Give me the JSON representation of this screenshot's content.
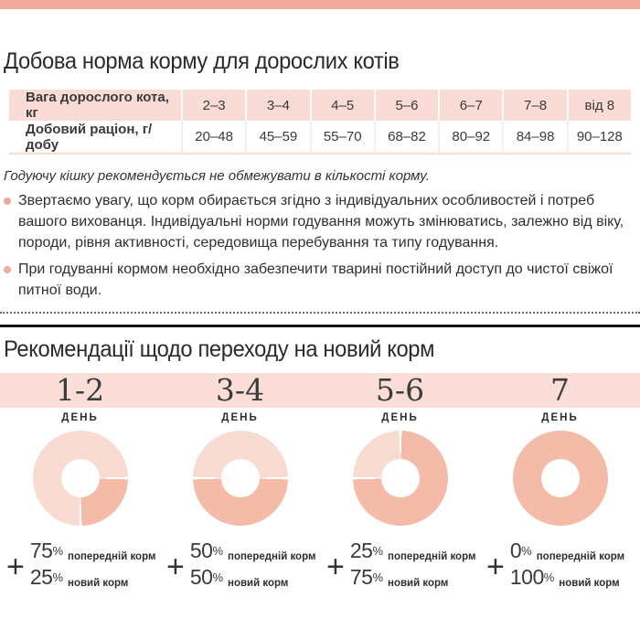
{
  "top_bar": {
    "color": "#f2a99a"
  },
  "section1": {
    "title": "Добова норма корму для дорослих котів",
    "table": {
      "header": [
        "Вага дорослого кота, кг",
        "2–3",
        "3–4",
        "4–5",
        "5–6",
        "6–7",
        "7–8",
        "від 8"
      ],
      "row": [
        "Добовий раціон, г/добу",
        "20–48",
        "45–59",
        "55–70",
        "68–82",
        "80–92",
        "84–98",
        "90–128"
      ]
    },
    "note": "Годуючу кішку рекомендується не обмежувати в кількості корму.",
    "bullets": [
      "Звертаємо увагу, що корм обирається згідно з індивідуальних особливостей і потреб вашого вихованця. Індивідуальні норми годування можуть змінюватись, залежно від віку, породи, рівня активності, середовища перебування та типу годування.",
      "При годуванні кормом необхідно забезпечити тварині постійний доступ до чистої свіжої питної води."
    ]
  },
  "section2": {
    "title": "Рекомендації щодо переходу на новий корм",
    "plus_sign": "+",
    "percent_sign": "%",
    "columns": [
      {
        "days": "1-2",
        "day_word": "ДЕНЬ",
        "prev_pct": "75",
        "prev_label": "попередній корм",
        "new_pct": "25",
        "new_label": "новий корм"
      },
      {
        "days": "3-4",
        "day_word": "ДЕНЬ",
        "prev_pct": "50",
        "prev_label": "попередній корм",
        "new_pct": "50",
        "new_label": "новий корм"
      },
      {
        "days": "5-6",
        "day_word": "ДЕНЬ",
        "prev_pct": "25",
        "prev_label": "попередній корм",
        "new_pct": "75",
        "new_label": "новий корм"
      },
      {
        "days": "7",
        "day_word": "ДЕНЬ",
        "prev_pct": "0",
        "prev_label": "попередній корм",
        "new_pct": "100",
        "new_label": "новий корм"
      }
    ]
  },
  "chart_data": [
    {
      "type": "pie",
      "title": "День 1-2",
      "labels": [
        "попередній корм",
        "новий корм"
      ],
      "values": [
        75,
        25
      ],
      "colors": [
        "#f8dbd1",
        "#f3bba8"
      ]
    },
    {
      "type": "pie",
      "title": "День 3-4",
      "labels": [
        "попередній корм",
        "новий корм"
      ],
      "values": [
        50,
        50
      ],
      "colors": [
        "#f8dbd1",
        "#f3bba8"
      ]
    },
    {
      "type": "pie",
      "title": "День 5-6",
      "labels": [
        "попередній корм",
        "новий корм"
      ],
      "values": [
        25,
        75
      ],
      "colors": [
        "#f8dbd1",
        "#f3bba8"
      ]
    },
    {
      "type": "pie",
      "title": "День 7",
      "labels": [
        "попередній корм",
        "новий корм"
      ],
      "values": [
        0,
        100
      ],
      "colors": [
        "#f8dbd1",
        "#f3bba8"
      ]
    }
  ]
}
